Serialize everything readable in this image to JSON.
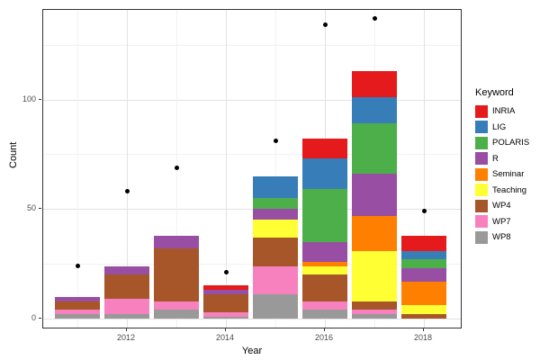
{
  "chart_data": {
    "type": "bar",
    "stacked": true,
    "title": "",
    "xlabel": "Year",
    "ylabel": "Count",
    "grid": true,
    "legend_position": "right",
    "legend_title": "Keyword",
    "categories": [
      2011,
      2012,
      2013,
      2014,
      2015,
      2016,
      2017,
      2018
    ],
    "series": [
      {
        "name": "INRIA",
        "color": "#E41A1C",
        "values": [
          0,
          0,
          0,
          2,
          0,
          9,
          12,
          7
        ]
      },
      {
        "name": "LIG",
        "color": "#377EB8",
        "values": [
          0,
          0,
          0,
          0,
          10,
          14,
          12,
          4
        ]
      },
      {
        "name": "POLARIS",
        "color": "#4DAF4A",
        "values": [
          0,
          0,
          0,
          0,
          5,
          24,
          23,
          4
        ]
      },
      {
        "name": "R",
        "color": "#984EA3",
        "values": [
          2,
          4,
          6,
          2,
          5,
          9,
          19,
          6
        ]
      },
      {
        "name": "Seminar",
        "color": "#FF7F00",
        "values": [
          0,
          0,
          0,
          0,
          0,
          2,
          16,
          11
        ]
      },
      {
        "name": "Teaching",
        "color": "#FFFF33",
        "values": [
          0,
          0,
          0,
          0,
          8,
          4,
          23,
          4
        ]
      },
      {
        "name": "WP4",
        "color": "#A65628",
        "values": [
          4,
          11,
          24,
          8,
          13,
          12,
          4,
          2
        ]
      },
      {
        "name": "WP7",
        "color": "#F781BF",
        "values": [
          2,
          7,
          4,
          2,
          13,
          4,
          2,
          0
        ]
      },
      {
        "name": "WP8",
        "color": "#999999",
        "values": [
          2,
          2,
          4,
          1,
          11,
          4,
          2,
          0
        ]
      }
    ],
    "stack_order_bottom_to_top": [
      "WP8",
      "WP7",
      "WP4",
      "Teaching",
      "Seminar",
      "R",
      "POLARIS",
      "LIG",
      "INRIA"
    ],
    "points": {
      "name": "yearly-total-points",
      "color": "#000000",
      "values": [
        24,
        58,
        69,
        21,
        81,
        134,
        137,
        49
      ]
    },
    "xticks": [
      "2012",
      "2014",
      "2016",
      "2018"
    ],
    "xtick_years": [
      2012,
      2014,
      2016,
      2018
    ],
    "minor_x_years": [
      2011,
      2013,
      2015,
      2017
    ],
    "yticks": [
      "0",
      "50",
      "100"
    ],
    "ytick_values": [
      0,
      50,
      100
    ],
    "minor_y_values": [
      25,
      75,
      125
    ],
    "ylim": [
      -5,
      141
    ]
  }
}
